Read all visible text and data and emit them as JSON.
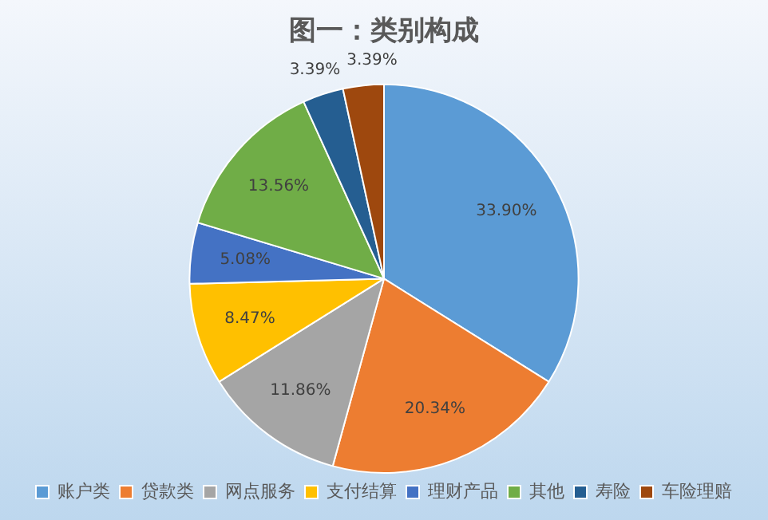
{
  "chart_data": {
    "type": "pie",
    "title": "图一：类别构成",
    "categories": [
      "账户类",
      "贷款类",
      "网点服务",
      "支付结算",
      "理财产品",
      "其他",
      "寿险",
      "车险理赔"
    ],
    "values": [
      33.9,
      20.34,
      11.86,
      8.47,
      5.08,
      13.56,
      3.39,
      3.39
    ],
    "colors": [
      "#5b9bd5",
      "#ed7d31",
      "#a5a5a5",
      "#ffc000",
      "#4472c4",
      "#70ad47",
      "#255e91",
      "#9e480e"
    ],
    "value_labels": [
      "33.90%",
      "20.34%",
      "11.86%",
      "8.47%",
      "5.08%",
      "13.56%",
      "3.39%",
      "3.39%"
    ],
    "legend": "bottom"
  }
}
